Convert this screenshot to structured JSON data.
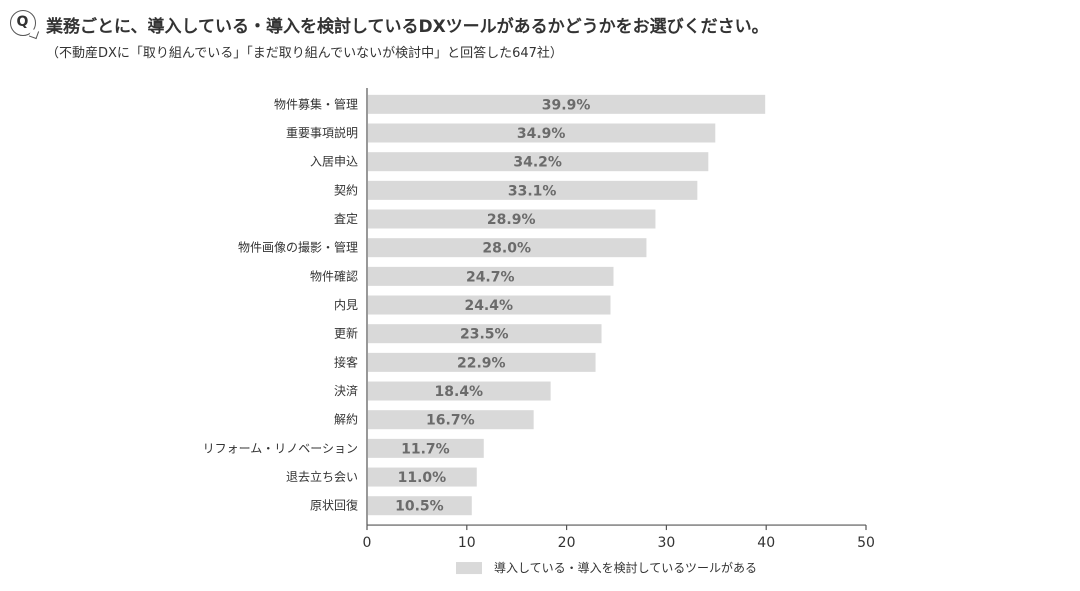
{
  "header": {
    "badge": "Q",
    "title": "業務ごとに、導入している・導入を検討しているDXツールがあるかどうかをお選びください。",
    "subtitle": "（不動産DXに「取り組んでいる」「まだ取り組んでいないが検討中」と回答した647社）"
  },
  "chart_data": {
    "type": "bar",
    "orientation": "horizontal",
    "categories": [
      "物件募集・管理",
      "重要事項説明",
      "入居申込",
      "契約",
      "査定",
      "物件画像の撮影・管理",
      "物件確認",
      "内見",
      "更新",
      "接客",
      "決済",
      "解約",
      "リフォーム・リノベーション",
      "退去立ち会い",
      "原状回復"
    ],
    "series": [
      {
        "name": "導入している・導入を検討しているツールがある",
        "values": [
          39.9,
          34.9,
          34.2,
          33.1,
          28.9,
          28.0,
          24.7,
          24.4,
          23.5,
          22.9,
          18.4,
          16.7,
          11.7,
          11.0,
          10.5
        ],
        "labels": [
          "39.9%",
          "34.9%",
          "34.2%",
          "33.1%",
          "28.9%",
          "28.0%",
          "24.7%",
          "24.4%",
          "23.5%",
          "22.9%",
          "18.4%",
          "16.7%",
          "11.7%",
          "11.0%",
          "10.5%"
        ]
      }
    ],
    "xlim": [
      0,
      50
    ],
    "xticks": [
      "0",
      "10",
      "20",
      "30",
      "40",
      "50"
    ],
    "grid": false,
    "legend_position": "bottom",
    "colors": {
      "bar": "#d9d9d9",
      "value_label": "#6b6b6b",
      "axis": "#555555"
    }
  }
}
